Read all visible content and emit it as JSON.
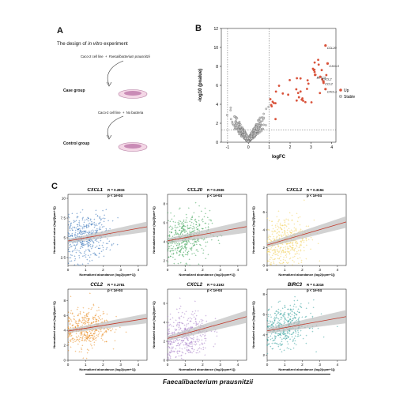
{
  "panelA": {
    "letter": "A",
    "title_pre": "The design of ",
    "title_em": "in vitro",
    "title_post": " experiment",
    "case_line_cells": "Caco-2 cell line",
    "case_line_plus": "+",
    "case_line_bact": "Faecalibacterium prausnitzii",
    "case_group": "Case group",
    "ctrl_line_cells": "Caco-2 cell line",
    "ctrl_line_plus": "+",
    "ctrl_line_bact": "No bacteria",
    "ctrl_group": "Control group"
  },
  "panelB": {
    "letter": "B",
    "ylabel": "-log10 (pvalue)",
    "xlabel": "logFC",
    "legend": [
      "Up",
      "Stable"
    ]
  },
  "panelC": {
    "letter": "C",
    "footer": "Faecalibacterium prausnitzii"
  },
  "colors": {
    "up": "#d9533b",
    "stable": "#888888",
    "fit": "#c0392b",
    "band": "#bfbfbf",
    "CXCL1": "#2f6db5",
    "CCL20": "#2e9b4a",
    "CXCL3": "#f2d15c",
    "CCL2": "#e88a1e",
    "CXCL2": "#a57bc6",
    "BIRC3": "#2a9c98"
  },
  "chart_data": [
    {
      "type": "scatter",
      "id": "volcano",
      "xlabel": "logFC",
      "ylabel": "-log10 (pvalue)",
      "xlim": [
        -1.3,
        4.2
      ],
      "ylim": [
        0,
        12
      ],
      "xticks": [
        -1,
        0,
        1,
        2,
        3,
        4
      ],
      "yticks": [
        0,
        2,
        4,
        6,
        8,
        10,
        12
      ],
      "thresholds": {
        "x": [
          -1,
          1
        ],
        "y": 1.3
      },
      "legend": [
        "Up",
        "Stable"
      ],
      "labeled_points": [
        {
          "label": "CCL20",
          "x": 3.7,
          "y": 10.2
        },
        {
          "label": "CXCL3",
          "x": 3.8,
          "y": 8.3
        },
        {
          "label": "BIRC3",
          "x": 3.2,
          "y": 7.1
        },
        {
          "label": "CXCL2",
          "x": 3.45,
          "y": 6.9
        },
        {
          "label": "CCL2",
          "x": 3.6,
          "y": 6.4
        },
        {
          "label": "CXCL1",
          "x": 3.7,
          "y": 5.6
        }
      ]
    },
    {
      "type": "scatter",
      "id": "CXCL1",
      "title": "CXCL1",
      "r": "R = 0.2815",
      "p": "p < 1e-04",
      "xlabel": "Normalized abundance (log2[cpm+1])",
      "ylabel": "Normalized value (log2[tpm+1])",
      "xlim": [
        0,
        4.5
      ],
      "ylim": [
        1.5,
        10.5
      ],
      "xticks": [
        0,
        1,
        2,
        3,
        4
      ],
      "yticks": [
        2.5,
        5.0,
        7.5,
        10.0
      ],
      "fit": {
        "x0": 0,
        "y0": 4.6,
        "x1": 4.5,
        "y1": 6.4
      },
      "cloud": {
        "xc": 1.0,
        "xs": 0.7,
        "yc": 5.0,
        "ys": 1.5
      }
    },
    {
      "type": "scatter",
      "id": "CCL20",
      "title": "CCL20",
      "r": "R = 0.2936",
      "p": "p < 1e-04",
      "xlabel": "Normalized abundance (log2[cpm+1])",
      "ylabel": "Normalized value (log2[tpm+1])",
      "xlim": [
        0,
        4.5
      ],
      "ylim": [
        1.5,
        9
      ],
      "xticks": [
        0,
        1,
        2,
        3,
        4
      ],
      "yticks": [
        2,
        4,
        6,
        8
      ],
      "fit": {
        "x0": 0,
        "y0": 4.1,
        "x1": 4.5,
        "y1": 5.6
      },
      "cloud": {
        "xc": 1.0,
        "xs": 0.7,
        "yc": 4.4,
        "ys": 1.2
      }
    },
    {
      "type": "scatter",
      "id": "CXCL3",
      "title": "CXCL3",
      "r": "R = 0.3194",
      "p": "p < 1e-04",
      "xlabel": "Normalized abundance (log2[cpm+1])",
      "ylabel": "Normalized value (log2[tpm+1])",
      "xlim": [
        0,
        4.5
      ],
      "ylim": [
        0,
        8
      ],
      "xticks": [
        0,
        1,
        2,
        3,
        4
      ],
      "yticks": [
        0,
        2,
        4,
        6
      ],
      "fit": {
        "x0": 0,
        "y0": 2.3,
        "x1": 4.5,
        "y1": 4.9
      },
      "cloud": {
        "xc": 1.0,
        "xs": 0.7,
        "yc": 2.6,
        "ys": 1.5
      }
    },
    {
      "type": "scatter",
      "id": "CCL2",
      "title": "CCL2",
      "r": "R = 0.2781",
      "p": "p < 1e-04",
      "xlabel": "Normalized abundance (log2[cpm+1])",
      "ylabel": "Normalized value (log2[tpm+1])",
      "xlim": [
        0,
        4.5
      ],
      "ylim": [
        0,
        9.5
      ],
      "xticks": [
        0,
        1,
        2,
        3,
        4
      ],
      "yticks": [
        0,
        2,
        4,
        6,
        8
      ],
      "fit": {
        "x0": 0,
        "y0": 3.9,
        "x1": 4.5,
        "y1": 5.6
      },
      "cloud": {
        "xc": 1.0,
        "xs": 0.7,
        "yc": 4.2,
        "ys": 1.3
      }
    },
    {
      "type": "scatter",
      "id": "CXCL2",
      "title": "CXCL2",
      "r": "R = 0.3192",
      "p": "p < 1e-04",
      "xlabel": "Normalized abundance (log2[cpm+1])",
      "ylabel": "Normalized value (log2[tpm+1])",
      "xlim": [
        0,
        4.5
      ],
      "ylim": [
        0,
        7.5
      ],
      "xticks": [
        0,
        1,
        2,
        3,
        4
      ],
      "yticks": [
        0,
        2,
        4,
        6
      ],
      "fit": {
        "x0": 0,
        "y0": 2.3,
        "x1": 4.5,
        "y1": 4.6
      },
      "cloud": {
        "xc": 1.0,
        "xs": 0.7,
        "yc": 2.4,
        "ys": 1.3
      }
    },
    {
      "type": "scatter",
      "id": "BIRC3",
      "title": "BIRC3",
      "r": "R = 0.3316",
      "p": "p < 1e-04",
      "xlabel": "Normalized abundance (log2[cpm+1])",
      "ylabel": "Normalized value (log2[tpm+1])",
      "xlim": [
        0,
        4.5
      ],
      "ylim": [
        1.5,
        8.5
      ],
      "xticks": [
        0,
        1,
        2,
        3,
        4
      ],
      "yticks": [
        2,
        4,
        6,
        8
      ],
      "fit": {
        "x0": 0,
        "y0": 4.4,
        "x1": 4.5,
        "y1": 5.8
      },
      "cloud": {
        "xc": 1.0,
        "xs": 0.7,
        "yc": 4.8,
        "ys": 1.0
      }
    }
  ]
}
